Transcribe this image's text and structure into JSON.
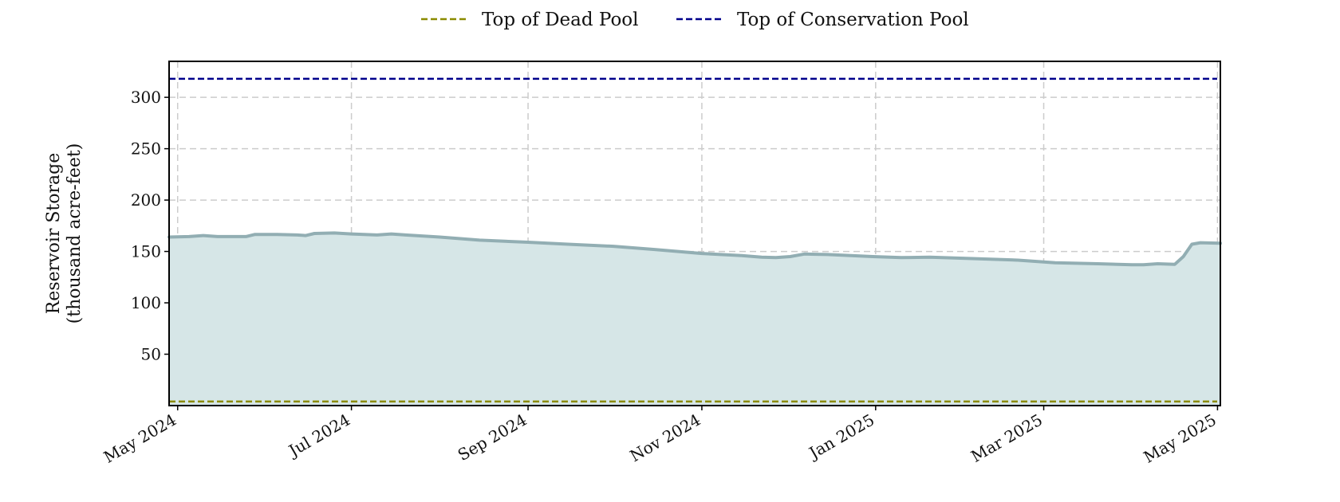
{
  "chart_data": {
    "type": "area",
    "title": "",
    "xlabel": "",
    "ylabel": [
      "Reservoir Storage",
      "(thousand acre-feet)"
    ],
    "xlim": [
      "2024-04-28",
      "2025-05-02"
    ],
    "ylim": [
      0,
      335
    ],
    "yticks": [
      50,
      100,
      150,
      200,
      250,
      300
    ],
    "xticks": [
      {
        "date": "2024-05-01",
        "label": "May 2024"
      },
      {
        "date": "2024-07-01",
        "label": "Jul 2024"
      },
      {
        "date": "2024-09-01",
        "label": "Sep 2024"
      },
      {
        "date": "2024-11-01",
        "label": "Nov 2024"
      },
      {
        "date": "2025-01-01",
        "label": "Jan 2025"
      },
      {
        "date": "2025-03-01",
        "label": "Mar 2025"
      },
      {
        "date": "2025-05-01",
        "label": "May 2025"
      }
    ],
    "grid": true,
    "legend_position": "top-center",
    "legend": [
      {
        "name": "Top of Dead Pool",
        "color": "#8b8b00",
        "style": "dashed"
      },
      {
        "name": "Top of Conservation Pool",
        "color": "#00008b",
        "style": "dashed"
      }
    ],
    "reference_lines": [
      {
        "name": "Top of Dead Pool",
        "y": 4,
        "color": "#8b8b00"
      },
      {
        "name": "Top of Conservation Pool",
        "y": 318,
        "color": "#00008b"
      }
    ],
    "series": [
      {
        "line_color": "#92aeb3",
        "fill_color": "#d6e6e7",
        "points": [
          [
            "2024-04-28",
            164
          ],
          [
            "2024-05-05",
            164.5
          ],
          [
            "2024-05-10",
            165.5
          ],
          [
            "2024-05-15",
            164.5
          ],
          [
            "2024-05-20",
            164.5
          ],
          [
            "2024-05-25",
            164.5
          ],
          [
            "2024-05-28",
            166.5
          ],
          [
            "2024-06-05",
            166.5
          ],
          [
            "2024-06-12",
            166
          ],
          [
            "2024-06-15",
            165.5
          ],
          [
            "2024-06-18",
            167.5
          ],
          [
            "2024-06-25",
            168
          ],
          [
            "2024-07-01",
            167
          ],
          [
            "2024-07-10",
            166
          ],
          [
            "2024-07-15",
            167
          ],
          [
            "2024-07-20",
            166
          ],
          [
            "2024-08-01",
            164
          ],
          [
            "2024-08-15",
            161
          ],
          [
            "2024-09-01",
            159
          ],
          [
            "2024-09-15",
            157
          ],
          [
            "2024-10-01",
            155
          ],
          [
            "2024-10-15",
            152
          ],
          [
            "2024-11-01",
            148
          ],
          [
            "2024-11-15",
            146
          ],
          [
            "2024-11-22",
            144.5
          ],
          [
            "2024-11-27",
            144
          ],
          [
            "2024-12-02",
            145
          ],
          [
            "2024-12-07",
            147.5
          ],
          [
            "2024-12-15",
            147
          ],
          [
            "2024-12-31",
            145
          ],
          [
            "2025-01-10",
            144
          ],
          [
            "2025-01-20",
            144.5
          ],
          [
            "2025-02-05",
            143
          ],
          [
            "2025-02-20",
            141.5
          ],
          [
            "2025-03-05",
            139
          ],
          [
            "2025-03-20",
            138
          ],
          [
            "2025-04-01",
            137
          ],
          [
            "2025-04-05",
            137
          ],
          [
            "2025-04-10",
            138
          ],
          [
            "2025-04-16",
            137.5
          ],
          [
            "2025-04-19",
            145
          ],
          [
            "2025-04-22",
            157
          ],
          [
            "2025-04-25",
            158.5
          ],
          [
            "2025-05-02",
            158
          ]
        ]
      }
    ]
  }
}
